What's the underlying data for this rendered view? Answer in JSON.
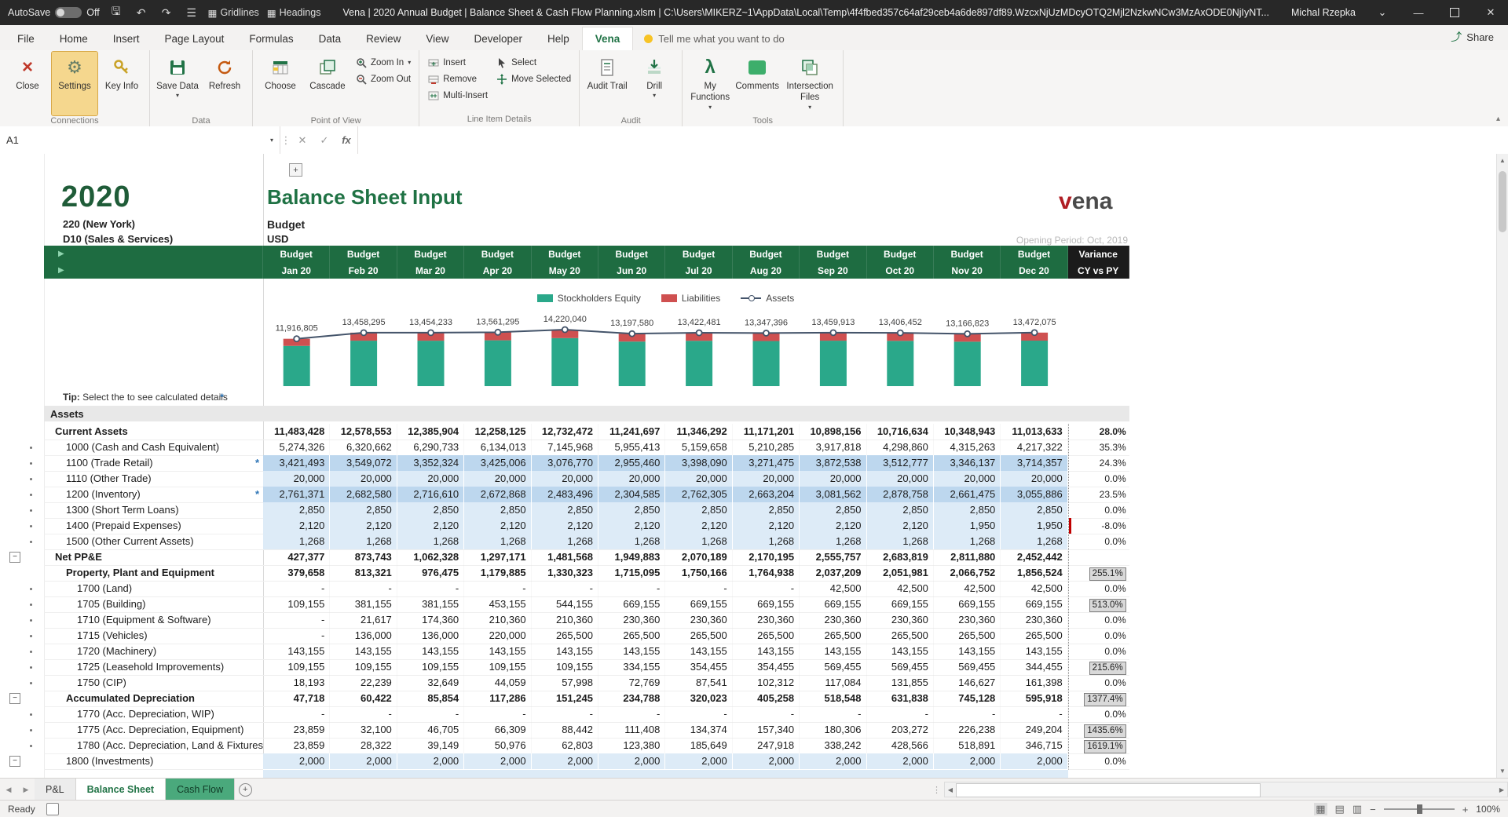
{
  "titlebar": {
    "autosave_label": "AutoSave",
    "autosave_state": "Off",
    "qat": {
      "gridlines": "Gridlines",
      "headings": "Headings"
    },
    "title": "Vena | 2020 Annual Budget | Balance Sheet & Cash Flow Planning.xlsm | C:\\Users\\MIKERZ~1\\AppData\\Local\\Temp\\4f4fbed357c64af29ceb4a6de897df89.WzcxNjUzMDcyOTQ2Mjl2NzkwNCw3MzAxODE0NjIyNT...",
    "user": "Michal Rzepka"
  },
  "ribbon": {
    "tabs": [
      "File",
      "Home",
      "Insert",
      "Page Layout",
      "Formulas",
      "Data",
      "Review",
      "View",
      "Developer",
      "Help",
      "Vena"
    ],
    "active_tab": "Vena",
    "tell_me": "Tell me what you want to do",
    "share_label": "Share",
    "groups": {
      "connections": "Connections",
      "data": "Data",
      "pov": "Point of View",
      "lid": "Line Item Details",
      "audit": "Audit",
      "tools": "Tools"
    },
    "buttons": {
      "close": "Close",
      "settings": "Settings",
      "key_info": "Key Info",
      "save_data": "Save Data",
      "refresh": "Refresh",
      "choose": "Choose",
      "cascade": "Cascade",
      "zoom_in": "Zoom In",
      "zoom_out": "Zoom Out",
      "insert": "Insert",
      "remove": "Remove",
      "multi_insert": "Multi-Insert",
      "select": "Select",
      "move_selected": "Move Selected",
      "audit_trail": "Audit Trail",
      "drill": "Drill",
      "my_functions": "My Functions",
      "comments": "Comments",
      "intersection_files": "Intersection Files"
    }
  },
  "formula_bar": {
    "name_box": "A1",
    "fx": "fx",
    "formula": ""
  },
  "sheet": {
    "year": "2020",
    "entity": "220 (New York)",
    "department": "D10 (Sales & Services)",
    "title": "Balance Sheet Input",
    "scenario": "Budget",
    "currency": "USD",
    "opening_period": "Opening Period: Oct, 2019",
    "logo_v": "v",
    "logo_rest": "ena",
    "header": {
      "budget_label": "Budget",
      "months": [
        "Jan 20",
        "Feb 20",
        "Mar 20",
        "Apr 20",
        "May 20",
        "Jun 20",
        "Jul 20",
        "Aug 20",
        "Sep 20",
        "Oct 20",
        "Nov 20",
        "Dec 20"
      ],
      "variance_title": "Variance",
      "variance_sub": "CY vs PY"
    },
    "tip": {
      "bold": "Tip:",
      "pre": " Select the ",
      "star": "*",
      "post": " to see calculated details"
    },
    "section": "Assets"
  },
  "chart_data": {
    "type": "combo",
    "categories": [
      "Jan 20",
      "Feb 20",
      "Mar 20",
      "Apr 20",
      "May 20",
      "Jun 20",
      "Jul 20",
      "Aug 20",
      "Sep 20",
      "Oct 20",
      "Nov 20",
      "Dec 20"
    ],
    "series": [
      {
        "name": "Stockholders Equity",
        "type": "bar",
        "stacked": true,
        "color": "#2aa88a",
        "values": [
          10126805,
          11438295,
          11434233,
          11531295,
          12090040,
          11217580,
          11412481,
          11347396,
          11439913,
          11396452,
          11186823,
          11452075
        ]
      },
      {
        "name": "Liabilities",
        "type": "bar",
        "stacked": true,
        "color": "#cf5050",
        "values": [
          1790000,
          2020000,
          2020000,
          2030000,
          2130000,
          1980000,
          2010000,
          2000000,
          2020000,
          2010000,
          1980000,
          2020000
        ]
      },
      {
        "name": "Assets",
        "type": "line",
        "color": "#44546a",
        "values": [
          11916805,
          13458295,
          13454233,
          13561295,
          14220040,
          13197580,
          13422481,
          13347396,
          13459913,
          13406452,
          13166823,
          13472075
        ]
      }
    ],
    "data_labels": [
      "11,916,805",
      "13,458,295",
      "13,454,233",
      "13,561,295",
      "14,220,040",
      "13,197,580",
      "13,422,481",
      "13,347,396",
      "13,459,913",
      "13,406,452",
      "13,166,823",
      "13,472,075"
    ],
    "legend_position": "top",
    "ylim": [
      0,
      14220040
    ],
    "grid": false
  },
  "table": {
    "rows": [
      {
        "label": "Current Assets",
        "style": "subtotal",
        "indent": 1,
        "star": false,
        "outline": "",
        "values": [
          "11,483,428",
          "12,578,553",
          "12,385,904",
          "12,258,125",
          "12,732,472",
          "11,241,697",
          "11,346,292",
          "11,171,201",
          "10,898,156",
          "10,716,634",
          "10,348,943",
          "11,013,633"
        ],
        "variance": "28.0%",
        "vstyle": "bold"
      },
      {
        "label": "1000 (Cash and Cash Equivalent)",
        "style": "item",
        "indent": 2,
        "star": false,
        "outline": "dot",
        "values": [
          "5,274,326",
          "6,320,662",
          "6,290,733",
          "6,134,013",
          "7,145,968",
          "5,955,413",
          "5,159,658",
          "5,210,285",
          "3,917,818",
          "4,298,860",
          "4,315,263",
          "4,217,322"
        ],
        "variance": "35.3%",
        "vstyle": ""
      },
      {
        "label": "1100 (Trade Retail)",
        "style": "input2",
        "indent": 2,
        "star": true,
        "outline": "dot",
        "values": [
          "3,421,493",
          "3,549,072",
          "3,352,324",
          "3,425,006",
          "3,076,770",
          "2,955,460",
          "3,398,090",
          "3,271,475",
          "3,872,538",
          "3,512,777",
          "3,346,137",
          "3,714,357"
        ],
        "variance": "24.3%",
        "vstyle": ""
      },
      {
        "label": "1110 (Other Trade)",
        "style": "input",
        "indent": 2,
        "star": false,
        "outline": "dot",
        "values": [
          "20,000",
          "20,000",
          "20,000",
          "20,000",
          "20,000",
          "20,000",
          "20,000",
          "20,000",
          "20,000",
          "20,000",
          "20,000",
          "20,000"
        ],
        "variance": "0.0%",
        "vstyle": ""
      },
      {
        "label": "1200 (Inventory)",
        "style": "input2",
        "indent": 2,
        "star": true,
        "outline": "dot",
        "values": [
          "2,761,371",
          "2,682,580",
          "2,716,610",
          "2,672,868",
          "2,483,496",
          "2,304,585",
          "2,762,305",
          "2,663,204",
          "3,081,562",
          "2,878,758",
          "2,661,475",
          "3,055,886"
        ],
        "variance": "23.5%",
        "vstyle": ""
      },
      {
        "label": "1300 (Short Term Loans)",
        "style": "input",
        "indent": 2,
        "star": false,
        "outline": "dot",
        "values": [
          "2,850",
          "2,850",
          "2,850",
          "2,850",
          "2,850",
          "2,850",
          "2,850",
          "2,850",
          "2,850",
          "2,850",
          "2,850",
          "2,850"
        ],
        "variance": "0.0%",
        "vstyle": ""
      },
      {
        "label": "1400 (Prepaid Expenses)",
        "style": "input",
        "indent": 2,
        "star": false,
        "outline": "dot",
        "values": [
          "2,120",
          "2,120",
          "2,120",
          "2,120",
          "2,120",
          "2,120",
          "2,120",
          "2,120",
          "2,120",
          "2,120",
          "1,950",
          "1,950"
        ],
        "variance": "-8.0%",
        "vstyle": "neg"
      },
      {
        "label": "1500 (Other Current Assets)",
        "style": "input",
        "indent": 2,
        "star": false,
        "outline": "dot",
        "values": [
          "1,268",
          "1,268",
          "1,268",
          "1,268",
          "1,268",
          "1,268",
          "1,268",
          "1,268",
          "1,268",
          "1,268",
          "1,268",
          "1,268"
        ],
        "variance": "0.0%",
        "vstyle": ""
      },
      {
        "label": "Net PP&E",
        "style": "subtotal",
        "indent": 1,
        "star": false,
        "outline": "minus",
        "values": [
          "427,377",
          "873,743",
          "1,062,328",
          "1,297,171",
          "1,481,568",
          "1,949,883",
          "2,070,189",
          "2,170,195",
          "2,555,757",
          "2,683,819",
          "2,811,880",
          "2,452,442"
        ],
        "variance": "",
        "vstyle": ""
      },
      {
        "label": "Property, Plant and Equipment",
        "style": "subtotal",
        "indent": 2,
        "star": false,
        "outline": "",
        "values": [
          "379,658",
          "813,321",
          "976,475",
          "1,179,885",
          "1,330,323",
          "1,715,095",
          "1,750,166",
          "1,764,938",
          "2,037,209",
          "2,051,981",
          "2,066,752",
          "1,856,524"
        ],
        "variance": "255.1%",
        "vstyle": "chip"
      },
      {
        "label": "1700 (Land)",
        "style": "item",
        "indent": 3,
        "star": false,
        "outline": "dot",
        "values": [
          "-",
          "-",
          "-",
          "-",
          "-",
          "-",
          "-",
          "-",
          "42,500",
          "42,500",
          "42,500",
          "42,500"
        ],
        "variance": "0.0%",
        "vstyle": ""
      },
      {
        "label": "1705 (Building)",
        "style": "item",
        "indent": 3,
        "star": false,
        "outline": "dot",
        "values": [
          "109,155",
          "381,155",
          "381,155",
          "453,155",
          "544,155",
          "669,155",
          "669,155",
          "669,155",
          "669,155",
          "669,155",
          "669,155",
          "669,155"
        ],
        "variance": "513.0%",
        "vstyle": "chip"
      },
      {
        "label": "1710 (Equipment & Software)",
        "style": "item",
        "indent": 3,
        "star": false,
        "outline": "dot",
        "values": [
          "-",
          "21,617",
          "174,360",
          "210,360",
          "210,360",
          "230,360",
          "230,360",
          "230,360",
          "230,360",
          "230,360",
          "230,360",
          "230,360"
        ],
        "variance": "0.0%",
        "vstyle": ""
      },
      {
        "label": "1715 (Vehicles)",
        "style": "item",
        "indent": 3,
        "star": false,
        "outline": "dot",
        "values": [
          "-",
          "136,000",
          "136,000",
          "220,000",
          "265,500",
          "265,500",
          "265,500",
          "265,500",
          "265,500",
          "265,500",
          "265,500",
          "265,500"
        ],
        "variance": "0.0%",
        "vstyle": ""
      },
      {
        "label": "1720 (Machinery)",
        "style": "item",
        "indent": 3,
        "star": false,
        "outline": "dot",
        "values": [
          "143,155",
          "143,155",
          "143,155",
          "143,155",
          "143,155",
          "143,155",
          "143,155",
          "143,155",
          "143,155",
          "143,155",
          "143,155",
          "143,155"
        ],
        "variance": "0.0%",
        "vstyle": ""
      },
      {
        "label": "1725 (Leasehold Improvements)",
        "style": "item",
        "indent": 3,
        "star": false,
        "outline": "dot",
        "values": [
          "109,155",
          "109,155",
          "109,155",
          "109,155",
          "109,155",
          "334,155",
          "354,455",
          "354,455",
          "569,455",
          "569,455",
          "569,455",
          "344,455"
        ],
        "variance": "215.6%",
        "vstyle": "chip"
      },
      {
        "label": "1750 (CIP)",
        "style": "item",
        "indent": 3,
        "star": false,
        "outline": "dot",
        "values": [
          "18,193",
          "22,239",
          "32,649",
          "44,059",
          "57,998",
          "72,769",
          "87,541",
          "102,312",
          "117,084",
          "131,855",
          "146,627",
          "161,398"
        ],
        "variance": "0.0%",
        "vstyle": ""
      },
      {
        "label": "Accumulated Depreciation",
        "style": "subtotal",
        "indent": 2,
        "star": false,
        "outline": "minus",
        "values": [
          "47,718",
          "60,422",
          "85,854",
          "117,286",
          "151,245",
          "234,788",
          "320,023",
          "405,258",
          "518,548",
          "631,838",
          "745,128",
          "595,918"
        ],
        "variance": "1377.4%",
        "vstyle": "chip"
      },
      {
        "label": "1770 (Acc. Depreciation, WIP)",
        "style": "item",
        "indent": 3,
        "star": false,
        "outline": "dot",
        "values": [
          "-",
          "-",
          "-",
          "-",
          "-",
          "-",
          "-",
          "-",
          "-",
          "-",
          "-",
          "-"
        ],
        "variance": "0.0%",
        "vstyle": ""
      },
      {
        "label": "1775 (Acc. Depreciation, Equipment)",
        "style": "item",
        "indent": 3,
        "star": false,
        "outline": "dot",
        "values": [
          "23,859",
          "32,100",
          "46,705",
          "66,309",
          "88,442",
          "111,408",
          "134,374",
          "157,340",
          "180,306",
          "203,272",
          "226,238",
          "249,204"
        ],
        "variance": "1435.6%",
        "vstyle": "chip"
      },
      {
        "label": "1780 (Acc. Depreciation, Land & Fixtures)",
        "style": "item",
        "indent": 3,
        "star": false,
        "outline": "dot",
        "values": [
          "23,859",
          "28,322",
          "39,149",
          "50,976",
          "62,803",
          "123,380",
          "185,649",
          "247,918",
          "338,242",
          "428,566",
          "518,891",
          "346,715"
        ],
        "variance": "1619.1%",
        "vstyle": "chip"
      },
      {
        "label": "1800 (Investments)",
        "style": "input",
        "indent": 2,
        "star": false,
        "outline": "minus",
        "values": [
          "2,000",
          "2,000",
          "2,000",
          "2,000",
          "2,000",
          "2,000",
          "2,000",
          "2,000",
          "2,000",
          "2,000",
          "2,000",
          "2,000"
        ],
        "variance": "0.0%",
        "vstyle": ""
      }
    ]
  },
  "sheet_tabs": [
    {
      "label": "P&L",
      "state": "inactive"
    },
    {
      "label": "Balance Sheet",
      "state": "active"
    },
    {
      "label": "Cash Flow",
      "state": "colored"
    }
  ],
  "statusbar": {
    "ready": "Ready",
    "zoom": "100%"
  },
  "colors": {
    "vena_green": "#1e6c41",
    "excel_green": "#217346",
    "equity_teal": "#2aa88a",
    "liabilities_red": "#cf5050",
    "assets_line": "#44546a",
    "input_blue": "#ddebf7",
    "input_blue_dark": "#bdd7ee"
  }
}
